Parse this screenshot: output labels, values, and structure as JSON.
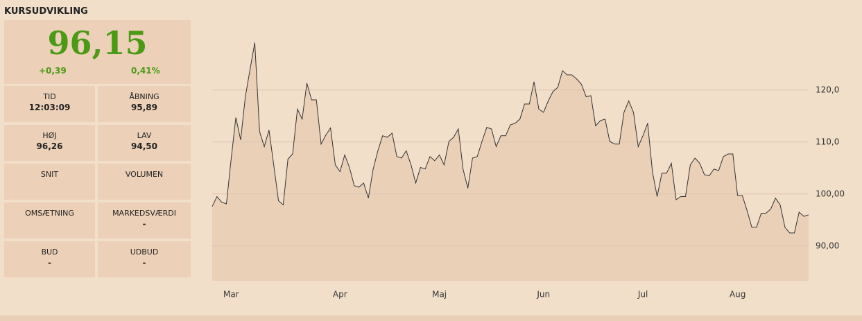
{
  "panel": {
    "title": "KURSUDVIKLING",
    "price": "96,15",
    "change": "+0,39",
    "change_pct": "0,41%",
    "fields": [
      {
        "label": "TID",
        "value": "12:03:09"
      },
      {
        "label": "ÅBNING",
        "value": "95,89"
      },
      {
        "label": "HØJ",
        "value": "96,26"
      },
      {
        "label": "LAV",
        "value": "94,50"
      },
      {
        "label": "SNIT"
      },
      {
        "label": "VOLUMEN"
      },
      {
        "label": "OMSÆTNING"
      },
      {
        "label": "MARKEDSVÆRDI",
        "value": "-"
      },
      {
        "label": "BUD",
        "value": "-"
      },
      {
        "label": "UDBUD",
        "value": "-"
      }
    ]
  },
  "chart_data": {
    "type": "area",
    "color": "#333333",
    "fill": "#ebd0b8",
    "grid": true,
    "categories": [
      null,
      null,
      null,
      null,
      "Mar",
      null,
      null,
      null,
      null,
      null,
      null,
      null,
      null,
      null,
      null,
      null,
      null,
      null,
      null,
      null,
      null,
      null,
      null,
      null,
      null,
      null,
      null,
      "Apr",
      null,
      null,
      null,
      null,
      null,
      null,
      null,
      null,
      null,
      null,
      null,
      null,
      null,
      null,
      null,
      null,
      null,
      null,
      null,
      null,
      "Maj",
      null,
      null,
      null,
      null,
      null,
      null,
      null,
      null,
      null,
      null,
      null,
      null,
      null,
      null,
      null,
      null,
      null,
      null,
      null,
      null,
      null,
      "Jun",
      null,
      null,
      null,
      null,
      null,
      null,
      null,
      null,
      null,
      null,
      null,
      null,
      null,
      null,
      null,
      null,
      null,
      null,
      null,
      null,
      "Jul",
      null,
      null,
      null,
      null,
      null,
      null,
      null,
      null,
      null,
      null,
      null,
      null,
      null,
      null,
      null,
      null,
      null,
      null,
      null,
      "Aug",
      null,
      null,
      null,
      null,
      null,
      null,
      null,
      null,
      null,
      null,
      null,
      null,
      null,
      null,
      null
    ],
    "values": [
      97.6,
      99.5,
      98.4,
      98.1,
      106.7,
      114.7,
      110.4,
      118.7,
      124,
      129.1,
      112,
      109.1,
      112.3,
      105.6,
      98.7,
      97.9,
      106.7,
      107.7,
      116.3,
      114.4,
      121.3,
      118.1,
      118.1,
      109.6,
      111.3,
      112.7,
      105.6,
      104.3,
      107.5,
      105.1,
      101.6,
      101.3,
      102.1,
      99.2,
      104.8,
      108.3,
      111.2,
      110.9,
      111.7,
      107.2,
      106.9,
      108.3,
      105.6,
      102.1,
      105.1,
      104.8,
      107.2,
      106.4,
      107.5,
      105.6,
      110.1,
      110.9,
      112.5,
      104.8,
      101.1,
      106.9,
      107.2,
      110.1,
      112.8,
      112.5,
      109.1,
      111.2,
      111.2,
      113.3,
      113.6,
      114.4,
      117.3,
      117.3,
      121.6,
      116.3,
      115.7,
      117.9,
      119.7,
      120.5,
      123.7,
      122.9,
      122.9,
      122.1,
      121.1,
      118.7,
      118.9,
      113.1,
      114.1,
      114.4,
      110.1,
      109.6,
      109.6,
      115.7,
      117.9,
      115.7,
      109.1,
      111.2,
      113.6,
      104.3,
      99.5,
      104,
      104,
      105.9,
      98.9,
      99.5,
      99.5,
      105.6,
      106.9,
      105.9,
      103.7,
      103.5,
      104.8,
      104.5,
      107.2,
      107.7,
      107.7,
      99.7,
      99.7,
      96.8,
      93.6,
      93.6,
      96.3,
      96.3,
      97.1,
      99.2,
      97.9,
      93.6,
      92.5,
      92.5,
      96.5,
      95.7,
      96
    ],
    "ylim": [
      83.3,
      133.3
    ],
    "yticks": [
      {
        "value": 120,
        "label": "120,0"
      },
      {
        "value": 110,
        "label": "110,0"
      },
      {
        "value": 100,
        "label": "100,00"
      },
      {
        "value": 90,
        "label": "90,00"
      }
    ]
  }
}
